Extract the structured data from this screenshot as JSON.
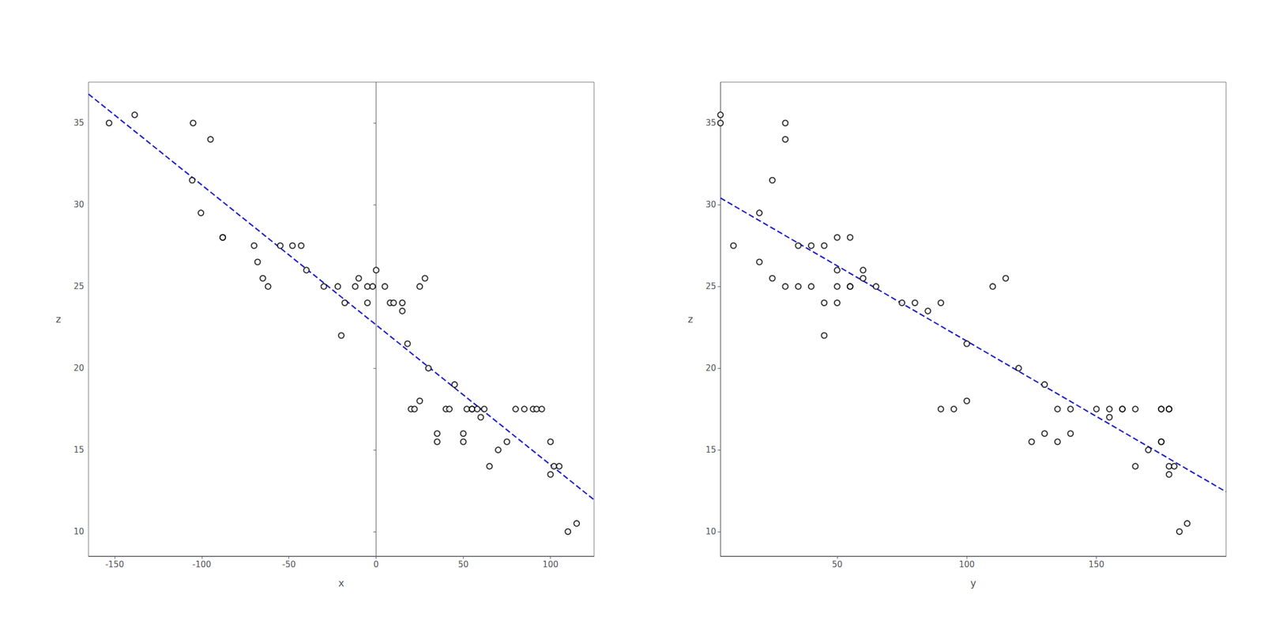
{
  "chart_data": [
    {
      "type": "scatter",
      "xlabel": "x",
      "ylabel": "z",
      "xlim": [
        -165,
        125
      ],
      "xticks": [
        -150,
        -100,
        -50,
        0,
        50,
        100
      ],
      "ylim": [
        8.5,
        37.5
      ],
      "yticks": [
        10,
        15,
        20,
        25,
        30,
        35
      ],
      "grid": false,
      "series": [
        {
          "type": "scatter",
          "color": "black",
          "marker": "circle",
          "x": [
            -153.2,
            -138.5,
            -105.5,
            -105.0,
            -100.5,
            -95.0,
            -88.0,
            -88.0,
            -70.0,
            -68.0,
            -65.0,
            -62.0,
            -55.0,
            -48.0,
            -43.0,
            -40.0,
            -30.0,
            -22.0,
            -20.0,
            -18.0,
            -12.0,
            -10.0,
            -5.0,
            -5.0,
            -2.0,
            0.0,
            5.0,
            8.0,
            10.0,
            15.0,
            15.0,
            18.0,
            20.0,
            22.0,
            25.0,
            25.0,
            28.0,
            30.0,
            35.0,
            35.0,
            40.0,
            42.0,
            45.0,
            50.0,
            50.0,
            52.0,
            55.0,
            55.0,
            58.0,
            60.0,
            62.0,
            65.0,
            70.0,
            75.0,
            80.0,
            85.0,
            90.0,
            92.0,
            95.0,
            100.0,
            100.0,
            102.0,
            105.0,
            110.0,
            115.0
          ],
          "values": [
            35.0,
            35.5,
            31.5,
            35.0,
            29.5,
            34.0,
            28.0,
            28.0,
            27.5,
            26.5,
            25.5,
            25.0,
            27.5,
            27.5,
            27.5,
            26.0,
            25.0,
            25.0,
            22.0,
            24.0,
            25.0,
            25.5,
            24.0,
            25.0,
            25.0,
            26.0,
            25.0,
            24.0,
            24.0,
            23.5,
            24.0,
            21.5,
            17.5,
            17.5,
            18.0,
            25.0,
            25.5,
            20.0,
            15.5,
            16.0,
            17.5,
            17.5,
            19.0,
            15.5,
            16.0,
            17.5,
            17.5,
            17.5,
            17.5,
            17.0,
            17.5,
            14.0,
            15.0,
            15.5,
            17.5,
            17.5,
            17.5,
            17.5,
            17.5,
            15.5,
            13.5,
            14.0,
            14.0,
            10.0,
            10.5
          ]
        },
        {
          "type": "line",
          "color": "#2222cc",
          "line_style": "dashed",
          "x": [
            -165,
            125
          ],
          "values": [
            36.7713,
            11.9459
          ]
        }
      ]
    },
    {
      "type": "scatter",
      "xlabel": "y",
      "ylabel": "z",
      "xlim": [
        5,
        200
      ],
      "xticks": [
        50,
        100,
        150
      ],
      "ylim": [
        8.5,
        37.5
      ],
      "yticks": [
        10,
        15,
        20,
        25,
        30,
        35
      ],
      "grid": false,
      "series": [
        {
          "type": "scatter",
          "color": "black",
          "marker": "circle",
          "x": [
            5.0,
            5.0,
            25.0,
            30.0,
            20.0,
            30.0,
            50.0,
            55.0,
            10.0,
            20.0,
            25.0,
            30.0,
            35.0,
            40.0,
            45.0,
            50.0,
            35.0,
            40.0,
            45.0,
            50.0,
            55.0,
            60.0,
            45.0,
            50.0,
            55.0,
            60.0,
            65.0,
            75.0,
            80.0,
            85.0,
            90.0,
            100.0,
            90.0,
            95.0,
            100.0,
            110.0,
            115.0,
            120.0,
            125.0,
            130.0,
            135.0,
            140.0,
            130.0,
            135.0,
            140.0,
            150.0,
            155.0,
            160.0,
            165.0,
            155.0,
            160.0,
            165.0,
            170.0,
            175.0,
            175.0,
            178.0,
            175.0,
            178.0,
            178.0,
            175.0,
            178.0,
            178.0,
            180.0,
            182.0,
            185.0
          ],
          "values": [
            35.0,
            35.5,
            31.5,
            35.0,
            29.5,
            34.0,
            28.0,
            28.0,
            27.5,
            26.5,
            25.5,
            25.0,
            27.5,
            27.5,
            27.5,
            26.0,
            25.0,
            25.0,
            22.0,
            24.0,
            25.0,
            25.5,
            24.0,
            25.0,
            25.0,
            26.0,
            25.0,
            24.0,
            24.0,
            23.5,
            24.0,
            21.5,
            17.5,
            17.5,
            18.0,
            25.0,
            25.5,
            20.0,
            15.5,
            16.0,
            17.5,
            17.5,
            19.0,
            15.5,
            16.0,
            17.5,
            17.5,
            17.5,
            17.5,
            17.0,
            17.5,
            14.0,
            15.0,
            15.5,
            17.5,
            17.5,
            17.5,
            17.5,
            17.5,
            15.5,
            13.5,
            14.0,
            14.0,
            10.0,
            10.5
          ]
        },
        {
          "type": "line",
          "color": "#2222cc",
          "line_style": "dashed",
          "x": [
            5,
            200
          ],
          "values": [
            30.4137,
            12.4365
          ]
        }
      ]
    }
  ]
}
